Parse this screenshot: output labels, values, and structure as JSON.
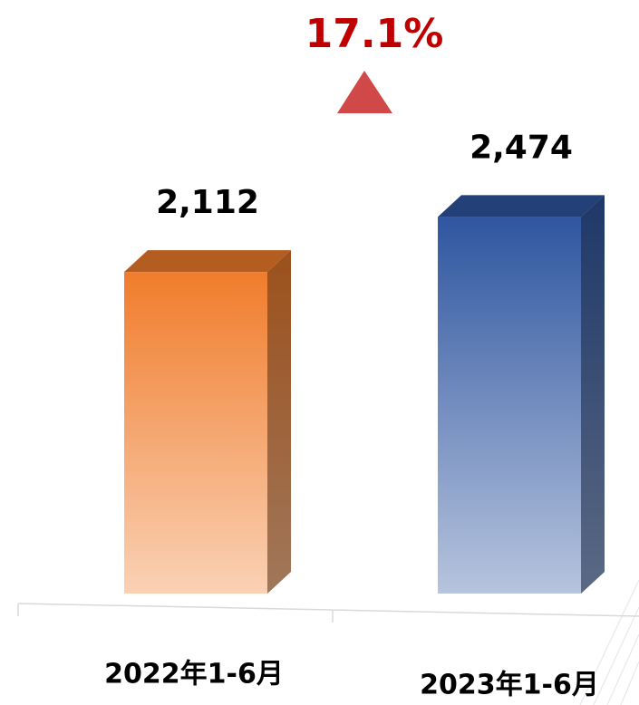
{
  "chart_data": {
    "type": "bar3d",
    "annotation": "17.1%",
    "categories": [
      "2022年1-6月",
      "2023年1-6月"
    ],
    "values": [
      2112,
      2474
    ],
    "value_labels": [
      "2,112",
      "2,474"
    ],
    "colors": [
      "#f07c2c",
      "#2f56a0"
    ]
  }
}
